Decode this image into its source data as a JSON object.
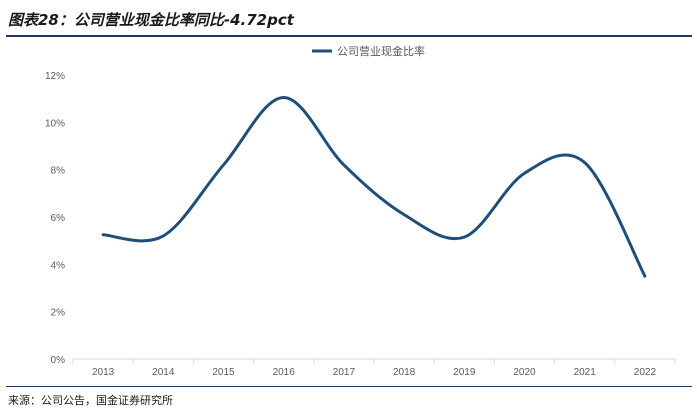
{
  "figure": {
    "title": "图表28：公司营业现金比率同比-4.72pct",
    "source": "来源：公司公告，国金证券研究所"
  },
  "colors": {
    "line": "#1f4e79",
    "axis": "#d9d9d9",
    "rule": "#1f3864"
  },
  "chart_data": {
    "type": "line",
    "categories": [
      "2013",
      "2014",
      "2015",
      "2016",
      "2017",
      "2018",
      "2019",
      "2020",
      "2021",
      "2022"
    ],
    "series": [
      {
        "name": "公司营业现金比率",
        "values": [
          5.25,
          5.2,
          8.2,
          11.05,
          8.2,
          6.1,
          5.15,
          7.85,
          8.3,
          3.5
        ]
      }
    ],
    "y_ticks": [
      "0%",
      "2%",
      "4%",
      "6%",
      "8%",
      "10%",
      "12%"
    ],
    "ylim": [
      0,
      12
    ],
    "y_unit": "%",
    "grid": false,
    "legend_position": "top-center",
    "xlabel": "",
    "ylabel": ""
  }
}
